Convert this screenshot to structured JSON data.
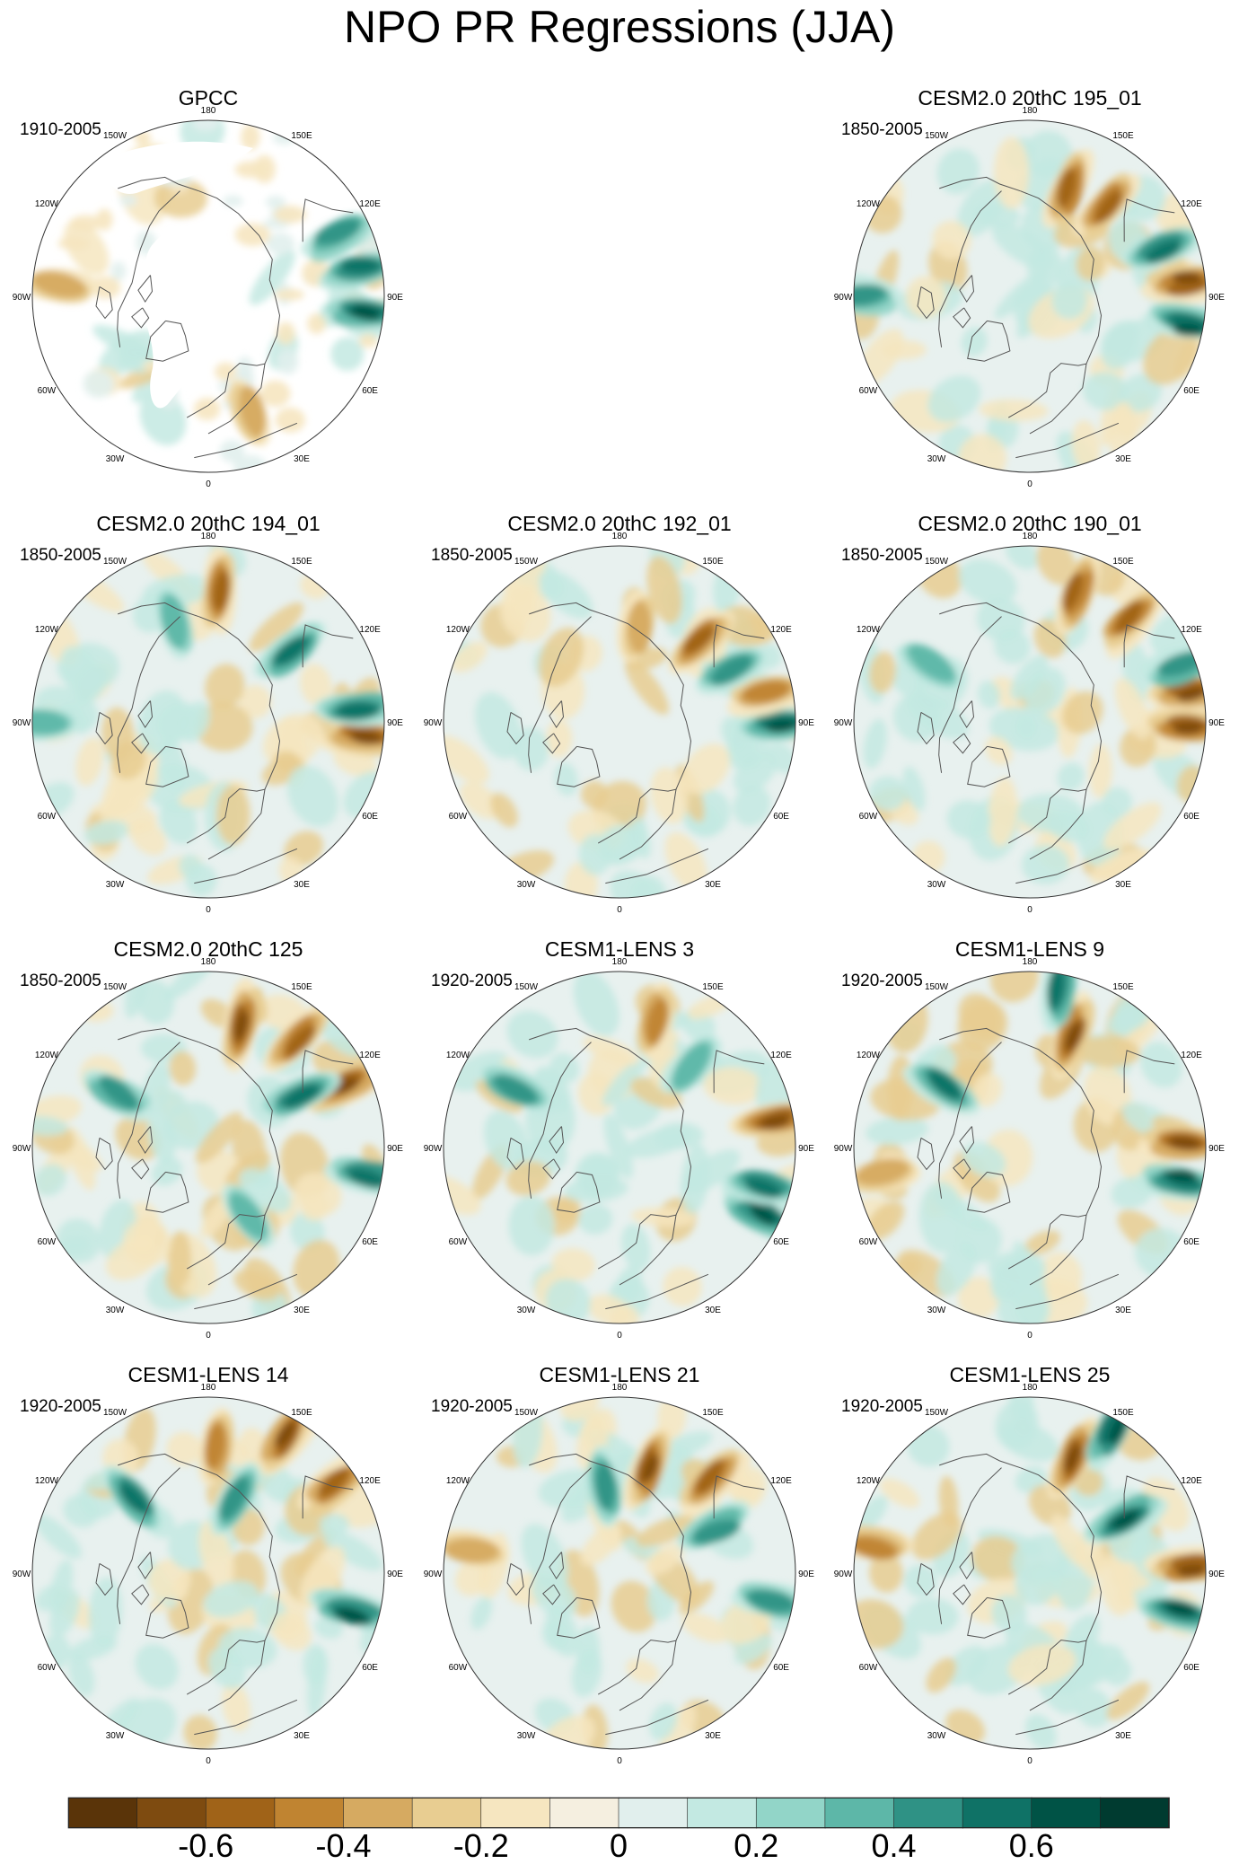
{
  "title": "NPO PR Regressions (JJA)",
  "longitude_labels": [
    "180",
    "150E",
    "120E",
    "90E",
    "60E",
    "30E",
    "0",
    "30W",
    "60W",
    "90W",
    "120W",
    "150W"
  ],
  "panels": [
    {
      "title": "GPCC",
      "period": "1910-2005",
      "masked": true,
      "features": [
        {
          "lon": 100,
          "r": 0.88,
          "kind": "wet",
          "strength": 0.8
        },
        {
          "lon": 85,
          "r": 0.9,
          "kind": "wet",
          "strength": 0.9
        },
        {
          "lon": 115,
          "r": 0.82,
          "kind": "wet",
          "strength": 0.6
        },
        {
          "lon": -95,
          "r": 0.85,
          "kind": "dry",
          "strength": 0.4
        },
        {
          "lon": 20,
          "r": 0.7,
          "kind": "dry",
          "strength": 0.3
        }
      ]
    },
    {
      "title": "CESM2.0 20thC 195_01",
      "period": "1850-2005",
      "masked": false,
      "features": [
        {
          "lon": 160,
          "r": 0.65,
          "kind": "dry",
          "strength": 0.8
        },
        {
          "lon": 140,
          "r": 0.68,
          "kind": "dry",
          "strength": 0.7
        },
        {
          "lon": 95,
          "r": 0.9,
          "kind": "dry",
          "strength": 1.0
        },
        {
          "lon": 80,
          "r": 0.92,
          "kind": "wet",
          "strength": 1.0
        },
        {
          "lon": 110,
          "r": 0.8,
          "kind": "wet",
          "strength": 0.7
        },
        {
          "lon": -90,
          "r": 0.95,
          "kind": "wet",
          "strength": 0.5
        }
      ]
    },
    {
      "title": "CESM2.0 20thC 194_01",
      "period": "1850-2005",
      "masked": false,
      "features": [
        {
          "lon": 175,
          "r": 0.75,
          "kind": "dry",
          "strength": 0.8
        },
        {
          "lon": 130,
          "r": 0.62,
          "kind": "wet",
          "strength": 0.7
        },
        {
          "lon": 85,
          "r": 0.9,
          "kind": "dry",
          "strength": 1.0
        },
        {
          "lon": 95,
          "r": 0.85,
          "kind": "wet",
          "strength": 0.8
        },
        {
          "lon": -160,
          "r": 0.6,
          "kind": "wet",
          "strength": 0.4
        },
        {
          "lon": -90,
          "r": 0.95,
          "kind": "wet",
          "strength": 0.4
        }
      ]
    },
    {
      "title": "CESM2.0 20thC 192_01",
      "period": "1850-2005",
      "masked": false,
      "features": [
        {
          "lon": 135,
          "r": 0.65,
          "kind": "dry",
          "strength": 0.7
        },
        {
          "lon": 90,
          "r": 0.92,
          "kind": "wet",
          "strength": 1.0
        },
        {
          "lon": 100,
          "r": 0.85,
          "kind": "dry",
          "strength": 0.6
        },
        {
          "lon": 115,
          "r": 0.7,
          "kind": "wet",
          "strength": 0.5
        },
        {
          "lon": 170,
          "r": 0.55,
          "kind": "dry",
          "strength": 0.3
        }
      ]
    },
    {
      "title": "CESM2.0 20thC 190_01",
      "period": "1850-2005",
      "masked": false,
      "features": [
        {
          "lon": 160,
          "r": 0.78,
          "kind": "dry",
          "strength": 0.8
        },
        {
          "lon": 135,
          "r": 0.82,
          "kind": "dry",
          "strength": 0.7
        },
        {
          "lon": 100,
          "r": 0.93,
          "kind": "dry",
          "strength": 0.9
        },
        {
          "lon": 88,
          "r": 0.9,
          "kind": "dry",
          "strength": 1.0
        },
        {
          "lon": 110,
          "r": 0.92,
          "kind": "wet",
          "strength": 0.6
        },
        {
          "lon": -120,
          "r": 0.65,
          "kind": "wet",
          "strength": 0.4
        }
      ]
    },
    {
      "title": "CESM2.0 20thC 125",
      "period": "1850-2005",
      "masked": false,
      "features": [
        {
          "lon": 165,
          "r": 0.72,
          "kind": "dry",
          "strength": 1.0
        },
        {
          "lon": 140,
          "r": 0.8,
          "kind": "dry",
          "strength": 0.8
        },
        {
          "lon": 115,
          "r": 0.85,
          "kind": "dry",
          "strength": 0.9
        },
        {
          "lon": 120,
          "r": 0.6,
          "kind": "wet",
          "strength": 0.8
        },
        {
          "lon": 80,
          "r": 0.92,
          "kind": "wet",
          "strength": 0.8
        },
        {
          "lon": -120,
          "r": 0.6,
          "kind": "wet",
          "strength": 0.5
        },
        {
          "lon": 30,
          "r": 0.45,
          "kind": "wet",
          "strength": 0.4
        }
      ]
    },
    {
      "title": "CESM1-LENS 3",
      "period": "1920-2005",
      "masked": false,
      "features": [
        {
          "lon": 100,
          "r": 0.9,
          "kind": "dry",
          "strength": 1.0
        },
        {
          "lon": 65,
          "r": 0.9,
          "kind": "wet",
          "strength": 1.0
        },
        {
          "lon": 75,
          "r": 0.85,
          "kind": "wet",
          "strength": 0.7
        },
        {
          "lon": 165,
          "r": 0.75,
          "kind": "dry",
          "strength": 0.5
        },
        {
          "lon": -120,
          "r": 0.68,
          "kind": "wet",
          "strength": 0.6
        },
        {
          "lon": 140,
          "r": 0.62,
          "kind": "wet",
          "strength": 0.4
        }
      ]
    },
    {
      "title": "CESM1-LENS 9",
      "period": "1920-2005",
      "masked": false,
      "features": [
        {
          "lon": 160,
          "r": 0.68,
          "kind": "dry",
          "strength": 0.9
        },
        {
          "lon": 170,
          "r": 0.92,
          "kind": "wet",
          "strength": 0.8
        },
        {
          "lon": 92,
          "r": 0.88,
          "kind": "dry",
          "strength": 1.0
        },
        {
          "lon": 78,
          "r": 0.88,
          "kind": "wet",
          "strength": 0.9
        },
        {
          "lon": -125,
          "r": 0.6,
          "kind": "wet",
          "strength": 0.7
        },
        {
          "lon": -80,
          "r": 0.85,
          "kind": "dry",
          "strength": 0.4
        }
      ]
    },
    {
      "title": "CESM1-LENS 14",
      "period": "1920-2005",
      "masked": false,
      "features": [
        {
          "lon": 150,
          "r": 0.9,
          "kind": "dry",
          "strength": 0.9
        },
        {
          "lon": 125,
          "r": 0.88,
          "kind": "dry",
          "strength": 0.7
        },
        {
          "lon": 175,
          "r": 0.72,
          "kind": "dry",
          "strength": 0.5
        },
        {
          "lon": 160,
          "r": 0.45,
          "kind": "wet",
          "strength": 0.6
        },
        {
          "lon": 75,
          "r": 0.85,
          "kind": "wet",
          "strength": 1.0
        },
        {
          "lon": -135,
          "r": 0.6,
          "kind": "wet",
          "strength": 0.7
        }
      ]
    },
    {
      "title": "CESM1-LENS 21",
      "period": "1920-2005",
      "masked": false,
      "features": [
        {
          "lon": 165,
          "r": 0.62,
          "kind": "dry",
          "strength": 0.9
        },
        {
          "lon": 135,
          "r": 0.75,
          "kind": "dry",
          "strength": 0.8
        },
        {
          "lon": -170,
          "r": 0.5,
          "kind": "wet",
          "strength": 0.6
        },
        {
          "lon": 115,
          "r": 0.6,
          "kind": "wet",
          "strength": 0.6
        },
        {
          "lon": 80,
          "r": 0.88,
          "kind": "wet",
          "strength": 0.6
        },
        {
          "lon": -100,
          "r": 0.85,
          "kind": "dry",
          "strength": 0.4
        }
      ]
    },
    {
      "title": "CESM1-LENS 25",
      "period": "1920-2005",
      "masked": false,
      "features": [
        {
          "lon": 160,
          "r": 0.7,
          "kind": "dry",
          "strength": 0.9
        },
        {
          "lon": 150,
          "r": 0.95,
          "kind": "wet",
          "strength": 1.0
        },
        {
          "lon": 120,
          "r": 0.62,
          "kind": "wet",
          "strength": 0.9
        },
        {
          "lon": 92,
          "r": 0.92,
          "kind": "dry",
          "strength": 1.0
        },
        {
          "lon": 75,
          "r": 0.88,
          "kind": "wet",
          "strength": 0.9
        },
        {
          "lon": -100,
          "r": 0.9,
          "kind": "dry",
          "strength": 0.5
        }
      ]
    }
  ],
  "colorbar": {
    "colors": [
      "#5a3409",
      "#7e4b10",
      "#a06318",
      "#c08431",
      "#d6aa61",
      "#e8cd91",
      "#f6e6c0",
      "#f5efe0",
      "#e1efed",
      "#c3e9e2",
      "#92d5c8",
      "#5db7a8",
      "#2f9285",
      "#0f7266",
      "#005346",
      "#003b30"
    ],
    "labels": [
      {
        "text": "-0.6",
        "value": -0.6
      },
      {
        "text": "-0.4",
        "value": -0.4
      },
      {
        "text": "-0.2",
        "value": -0.2
      },
      {
        "text": "0",
        "value": 0
      },
      {
        "text": "0.2",
        "value": 0.2
      },
      {
        "text": "0.4",
        "value": 0.4
      },
      {
        "text": "0.6",
        "value": 0.6
      }
    ]
  }
}
